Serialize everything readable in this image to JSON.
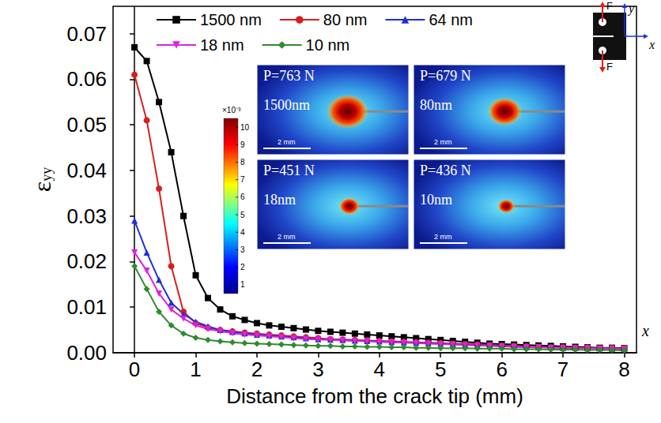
{
  "chart_data": {
    "type": "line",
    "xlabel": "Distance from the crack tip (mm)",
    "ylabel": "εyy",
    "x": [
      0,
      0.2,
      0.4,
      0.6,
      0.8,
      1,
      1.2,
      1.4,
      1.6,
      1.8,
      2,
      2.2,
      2.4,
      2.6,
      2.8,
      3,
      3.2,
      3.4,
      3.6,
      3.8,
      4,
      4.2,
      4.4,
      4.6,
      4.8,
      5,
      5.2,
      5.4,
      5.6,
      5.8,
      6,
      6.2,
      6.4,
      6.6,
      6.8,
      7,
      7.2,
      7.4,
      7.6,
      7.8,
      8
    ],
    "series": [
      {
        "name": "1500 nm",
        "color": "#000000",
        "marker": "square",
        "values": [
          0.067,
          0.064,
          0.055,
          0.044,
          0.03,
          0.017,
          0.012,
          0.0095,
          0.008,
          0.0072,
          0.0065,
          0.006,
          0.0057,
          0.0054,
          0.0051,
          0.0048,
          0.0046,
          0.0044,
          0.0042,
          0.004,
          0.0038,
          0.0036,
          0.0034,
          0.0032,
          0.003,
          0.0028,
          0.0026,
          0.0024,
          0.0022,
          0.002,
          0.0019,
          0.0018,
          0.0017,
          0.0016,
          0.0015,
          0.0014,
          0.0013,
          0.0012,
          0.0011,
          0.0011,
          0.001
        ]
      },
      {
        "name": "80 nm",
        "color": "#d62020",
        "marker": "circle",
        "values": [
          0.061,
          0.051,
          0.036,
          0.019,
          0.009,
          0.0065,
          0.0055,
          0.005,
          0.0047,
          0.0044,
          0.0042,
          0.004,
          0.0038,
          0.0036,
          0.0034,
          0.0032,
          0.003,
          0.0029,
          0.0028,
          0.0027,
          0.0026,
          0.0025,
          0.0024,
          0.0023,
          0.0022,
          0.0021,
          0.002,
          0.0019,
          0.0018,
          0.0017,
          0.0016,
          0.0015,
          0.0014,
          0.0013,
          0.0012,
          0.0012,
          0.0011,
          0.0011,
          0.001,
          0.001,
          0.0009
        ]
      },
      {
        "name": "64 nm",
        "color": "#1f2fd8",
        "marker": "triangle",
        "values": [
          0.029,
          0.022,
          0.016,
          0.011,
          0.0085,
          0.0068,
          0.0058,
          0.005,
          0.0046,
          0.0043,
          0.004,
          0.0038,
          0.0036,
          0.0034,
          0.0032,
          0.003,
          0.0029,
          0.0028,
          0.0027,
          0.0026,
          0.0025,
          0.0024,
          0.0023,
          0.0022,
          0.0021,
          0.002,
          0.0019,
          0.0018,
          0.0017,
          0.0016,
          0.0015,
          0.0014,
          0.0013,
          0.0012,
          0.0012,
          0.0011,
          0.0011,
          0.001,
          0.001,
          0.0009,
          0.0009
        ]
      },
      {
        "name": "18 nm",
        "color": "#e020e0",
        "marker": "triangle-down",
        "values": [
          0.022,
          0.018,
          0.013,
          0.0095,
          0.0075,
          0.006,
          0.0052,
          0.0047,
          0.0043,
          0.004,
          0.0038,
          0.0036,
          0.0034,
          0.0032,
          0.003,
          0.0029,
          0.0028,
          0.0027,
          0.0026,
          0.0025,
          0.0024,
          0.0023,
          0.0022,
          0.0021,
          0.002,
          0.0019,
          0.0018,
          0.0017,
          0.0016,
          0.0015,
          0.0014,
          0.0013,
          0.0012,
          0.0012,
          0.0011,
          0.0011,
          0.001,
          0.001,
          0.0009,
          0.0009,
          0.0008
        ]
      },
      {
        "name": "10 nm",
        "color": "#2e8b2e",
        "marker": "diamond",
        "values": [
          0.019,
          0.014,
          0.009,
          0.006,
          0.0042,
          0.0033,
          0.0028,
          0.0025,
          0.0023,
          0.0021,
          0.002,
          0.0019,
          0.0018,
          0.0017,
          0.0016,
          0.0015,
          0.0015,
          0.0014,
          0.0014,
          0.0013,
          0.0013,
          0.0012,
          0.0012,
          0.0011,
          0.0011,
          0.001,
          0.001,
          0.001,
          0.0009,
          0.0009,
          0.0009,
          0.0008,
          0.0008,
          0.0008,
          0.0007,
          0.0007,
          0.0007,
          0.0006,
          0.0006,
          0.0006,
          0.0005
        ]
      }
    ],
    "xlim": [
      -0.35,
      8.2
    ],
    "xticks": [
      0,
      1,
      2,
      3,
      4,
      5,
      6,
      7,
      8
    ],
    "ylim": [
      0,
      0.076
    ],
    "yticks": [
      {
        "value": 0,
        "label": "0.00"
      },
      {
        "value": 0.01,
        "label": "0.01"
      },
      {
        "value": 0.02,
        "label": "0.02"
      },
      {
        "value": 0.03,
        "label": "0.03"
      },
      {
        "value": 0.04,
        "label": "0.04"
      },
      {
        "value": 0.05,
        "label": "0.05"
      },
      {
        "value": 0.06,
        "label": "0.06"
      },
      {
        "value": 0.07,
        "label": "0.07"
      }
    ],
    "grid": false,
    "legend": "upper left",
    "annotations": [
      "x"
    ],
    "insets": [
      {
        "load_label": "P=763 N",
        "thickness_label": "1500nm",
        "scale_bar": "2 mm"
      },
      {
        "load_label": "P=679 N",
        "thickness_label": "80nm",
        "scale_bar": "2 mm"
      },
      {
        "load_label": "P=451 N",
        "thickness_label": "18nm",
        "scale_bar": "2 mm"
      },
      {
        "load_label": "P=436 N",
        "thickness_label": "10nm",
        "scale_bar": "2 mm"
      }
    ],
    "colorbar": {
      "label": "×10⁻³",
      "range": [
        0.5,
        10.5
      ],
      "ticks": [
        1,
        2,
        3,
        4,
        5,
        6,
        7,
        8,
        9,
        10
      ]
    },
    "schematic": {
      "force_labels": [
        "F",
        "F"
      ],
      "axis_labels": [
        "y",
        "x"
      ]
    }
  }
}
